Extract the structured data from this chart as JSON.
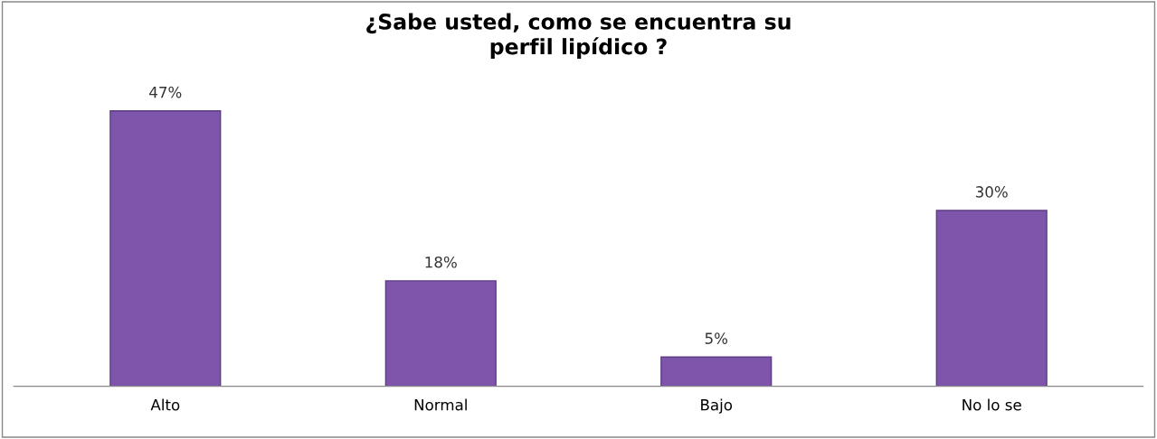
{
  "chart_data": {
    "type": "bar",
    "title": "¿Sabe usted, como se encuentra su\nperfil lipídico ?",
    "categories": [
      "Alto",
      "Normal",
      "Bajo",
      "No lo se"
    ],
    "values": [
      47,
      18,
      5,
      30
    ],
    "value_labels": [
      "47%",
      "18%",
      "5%",
      "30%"
    ],
    "color": "#7d55ab",
    "grid": false,
    "legend": false
  }
}
